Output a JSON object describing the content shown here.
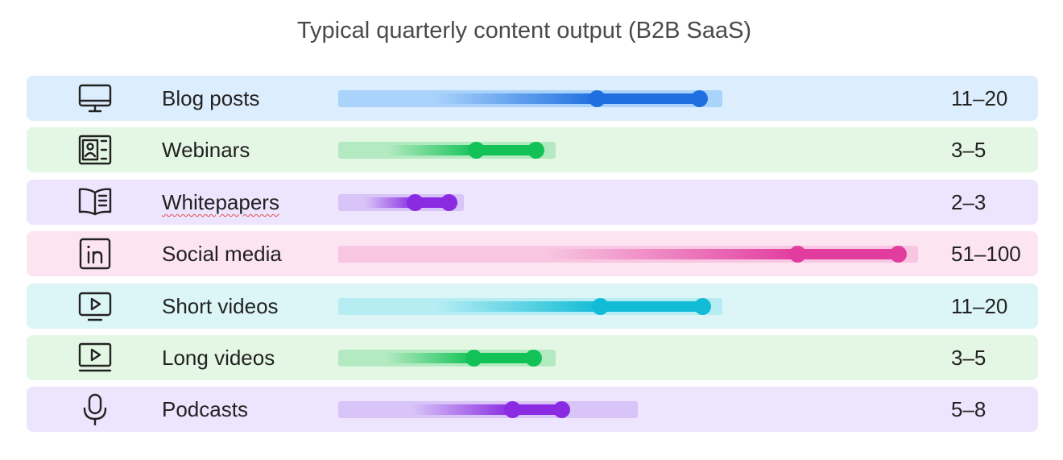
{
  "title": "Typical quarterly content output (B2B SaaS)",
  "rows": [
    {
      "label": "Blog posts",
      "range": "11–20"
    },
    {
      "label": "Webinars",
      "range": "3–5"
    },
    {
      "label": "Whitepapers",
      "range": "2–3"
    },
    {
      "label": "Social media",
      "range": "51–100"
    },
    {
      "label": "Short videos",
      "range": "11–20"
    },
    {
      "label": "Long videos",
      "range": "3–5"
    },
    {
      "label": "Podcasts",
      "range": "5–8"
    }
  ]
}
